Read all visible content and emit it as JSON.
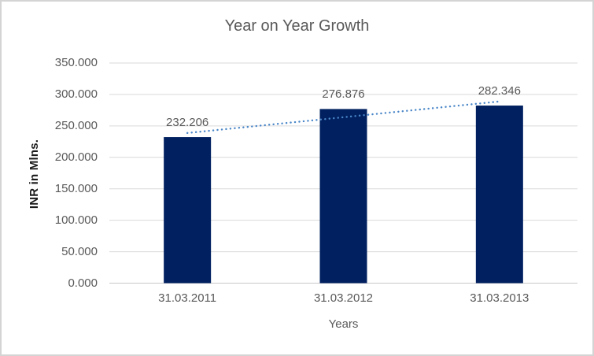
{
  "chart_data": {
    "type": "bar",
    "title": "Year on Year Growth",
    "categories": [
      "31.03.2011",
      "31.03.2012",
      "31.03.2013"
    ],
    "values": [
      232.206,
      276.876,
      282.346
    ],
    "data_labels": [
      "232.206",
      "276.876",
      "282.346"
    ],
    "xlabel": "Years",
    "ylabel": "INR in Mlns.",
    "ylim": [
      0,
      350
    ],
    "ytick_step": 50,
    "ytick_labels": [
      "0.000",
      "50.000",
      "100.000",
      "150.000",
      "200.000",
      "250.000",
      "300.000",
      "350.000"
    ],
    "grid": true,
    "legend": "none",
    "trendline": {
      "type": "linear",
      "style": "dotted"
    },
    "colors": {
      "bar": "#002060",
      "trendline": "#4a86c8",
      "title_text": "#595959",
      "axis_text": "#595959",
      "axis_title_text": "#1a1a1a",
      "gridline": "#d9d9d9",
      "axis_line": "#c9c9c9",
      "background": "#ffffff",
      "frame_border": "#d4d4d4"
    }
  }
}
